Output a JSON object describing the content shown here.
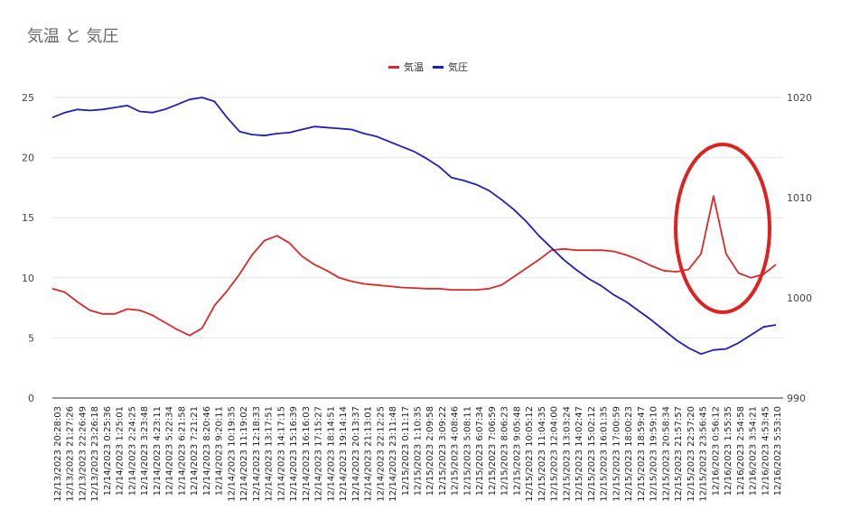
{
  "colors": {
    "temperature": "#d92a2a",
    "pressure": "#1f1fb4",
    "annotation_ellipse": "#dd2222",
    "grid": "#e6e6e6"
  },
  "chart_data": {
    "type": "line",
    "title": "気温 と 気圧",
    "legend": {
      "position": "top",
      "entries": [
        "気温",
        "気圧"
      ]
    },
    "grid": true,
    "y_left": {
      "ylim": [
        0,
        25
      ],
      "ticks": [
        "0",
        "5",
        "10",
        "15",
        "20",
        "25"
      ]
    },
    "y_right": {
      "ylim": [
        990,
        1020
      ],
      "ticks": [
        "990",
        "1000",
        "1010",
        "1020"
      ]
    },
    "x_labels": [
      "12/13/2023 20:28:03",
      "12/13/2023 21:27:26",
      "12/13/2023 22:26:49",
      "12/13/2023 23:26:18",
      "12/14/2023 0:25:36",
      "12/14/2023 1:25:01",
      "12/14/2023 2:24:25",
      "12/14/2023 3:23:48",
      "12/14/2023 4:23:11",
      "12/14/2023 5:22:34",
      "12/14/2023 6:21:58",
      "12/14/2023 7:21:21",
      "12/14/2023 8:20:46",
      "12/14/2023 9:20:11",
      "12/14/2023 10:19:35",
      "12/14/2023 11:19:02",
      "12/14/2023 12:18:33",
      "12/14/2023 13:17:51",
      "12/14/2023 14:17:15",
      "12/14/2023 15:16:39",
      "12/14/2023 16:16:03",
      "12/14/2023 17:15:27",
      "12/14/2023 18:14:51",
      "12/14/2023 19:14:14",
      "12/14/2023 20:13:37",
      "12/14/2023 21:13:01",
      "12/14/2023 22:12:25",
      "12/14/2023 23:11:48",
      "12/15/2023 0:11:17",
      "12/15/2023 1:10:35",
      "12/15/2023 2:09:58",
      "12/15/2023 3:09:22",
      "12/15/2023 4:08:46",
      "12/15/2023 5:08:11",
      "12/15/2023 6:07:34",
      "12/15/2023 7:06:59",
      "12/15/2023 8:06:23",
      "12/15/2023 9:05:48",
      "12/15/2023 10:05:12",
      "12/15/2023 11:04:35",
      "12/15/2023 12:04:00",
      "12/15/2023 13:03:24",
      "12/15/2023 14:02:47",
      "12/15/2023 15:02:12",
      "12/15/2023 16:01:35",
      "12/15/2023 17:00:59",
      "12/15/2023 18:00:23",
      "12/15/2023 18:59:47",
      "12/15/2023 19:59:10",
      "12/15/2023 20:58:34",
      "12/15/2023 21:57:57",
      "12/15/2023 22:57:20",
      "12/15/2023 23:56:45",
      "12/16/2023 0:56:12",
      "12/16/2023 1:55:35",
      "12/16/2023 2:54:58",
      "12/16/2023 3:54:21",
      "12/16/2023 4:53:45",
      "12/16/2023 5:53:10"
    ],
    "series": [
      {
        "name": "気温",
        "axis": "left",
        "color": "#d92a2a",
        "values": [
          9.1,
          8.8,
          8.0,
          7.3,
          7.0,
          7.0,
          7.4,
          7.3,
          6.9,
          6.3,
          5.7,
          5.2,
          5.8,
          7.7,
          8.9,
          10.3,
          11.9,
          13.1,
          13.5,
          12.9,
          11.8,
          11.1,
          10.6,
          10.0,
          9.7,
          9.5,
          9.4,
          9.3,
          9.2,
          9.15,
          9.1,
          9.1,
          9.0,
          9.0,
          9.0,
          9.1,
          9.4,
          10.1,
          10.8,
          11.5,
          12.3,
          12.4,
          12.3,
          12.3,
          12.3,
          12.2,
          11.9,
          11.5,
          11.0,
          10.6,
          10.5,
          10.7,
          12.0,
          16.8,
          12.0,
          10.4,
          10.0,
          10.3,
          11.1
        ]
      },
      {
        "name": "気圧",
        "axis": "right",
        "color": "#1f1fb4",
        "values": [
          1018.0,
          1018.5,
          1018.8,
          1018.7,
          1018.8,
          1019.0,
          1019.2,
          1018.6,
          1018.5,
          1018.8,
          1019.3,
          1019.8,
          1020.0,
          1019.6,
          1018.0,
          1016.6,
          1016.3,
          1016.2,
          1016.4,
          1016.5,
          1016.8,
          1017.1,
          1017.0,
          1016.9,
          1016.8,
          1016.4,
          1016.1,
          1015.6,
          1015.1,
          1014.6,
          1013.9,
          1013.1,
          1012.0,
          1011.7,
          1011.3,
          1010.7,
          1009.8,
          1008.8,
          1007.6,
          1006.2,
          1005.0,
          1003.8,
          1002.8,
          1001.9,
          1001.2,
          1000.3,
          999.6,
          998.7,
          997.8,
          996.8,
          995.8,
          995.0,
          994.4,
          994.8,
          994.9,
          995.5,
          996.3,
          997.1,
          997.3
        ]
      }
    ]
  }
}
